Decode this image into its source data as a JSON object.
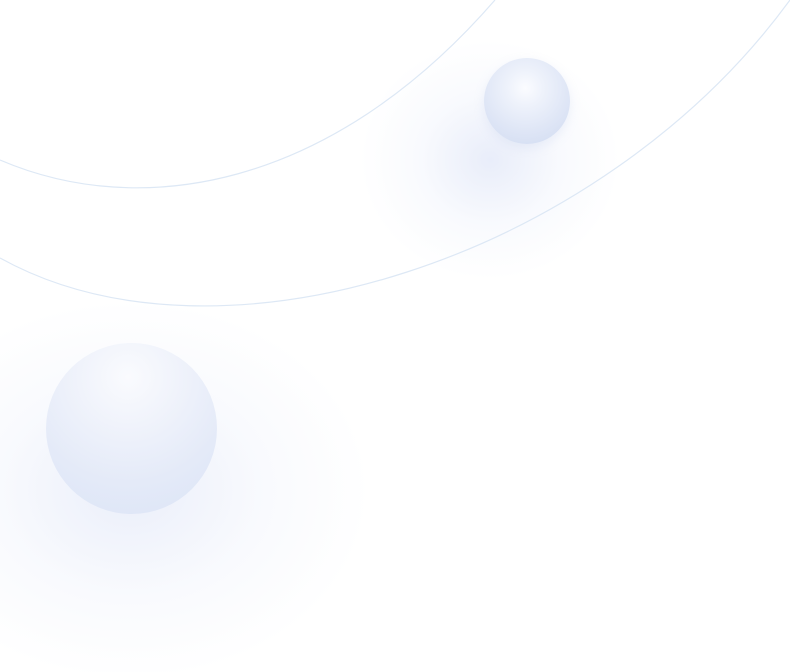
{
  "background": {
    "color": "#ffffff",
    "accent": "#d9e2f5",
    "arc_color": "#dde8f5"
  },
  "decorations": {
    "orbs": [
      "small-orb",
      "large-orb"
    ],
    "arcs": [
      "inner-arc",
      "outer-arc"
    ]
  }
}
